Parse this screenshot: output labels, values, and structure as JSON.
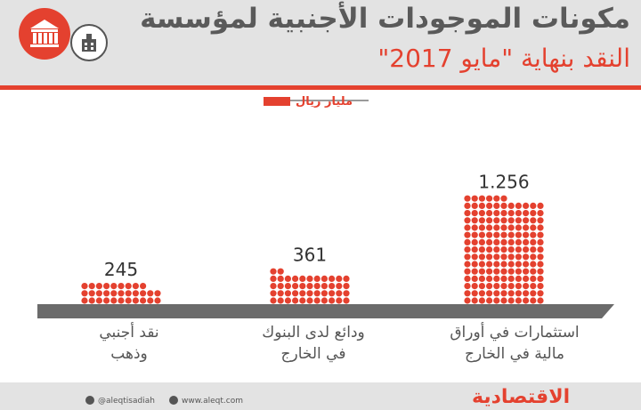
{
  "header": {
    "title_line1": "مكونات الموجودات الأجنبية لمؤسسة",
    "title_line2": "النقد بنهاية \"مايو 2017\""
  },
  "unit": {
    "label": "مليار ريال"
  },
  "chart_data": {
    "type": "bar",
    "categories": [
      {
        "line1": "نقد أجنبي",
        "line2": "وذهب"
      },
      {
        "line1": "ودائع لدى البنوك",
        "line2": "في الخارج"
      },
      {
        "line1": "استثمارات في أوراق",
        "line2": "مالية في الخارج"
      }
    ],
    "values": [
      245,
      361,
      1256
    ],
    "value_labels": [
      "245",
      "361",
      "1.256"
    ],
    "ylabel": "مليار ريال"
  },
  "colors": {
    "accent": "#e4412f",
    "dot": "#e4412f",
    "base": "#6b6b6b"
  },
  "footer": {
    "twitter": "@aleqtisadiah",
    "website": "www.aleqt.com",
    "brand": "الاقتصادية"
  },
  "icons": [
    "bank-icon",
    "building-icon",
    "twitter-icon",
    "globe-icon"
  ]
}
